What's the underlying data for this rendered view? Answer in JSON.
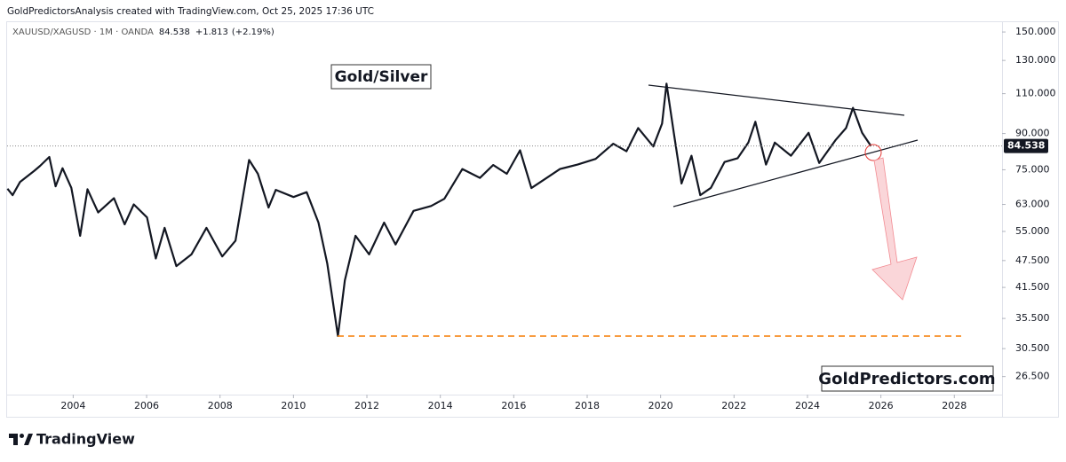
{
  "header": "GoldPredictorsAnalysis created with TradingView.com, Oct 25, 2025 17:36 UTC",
  "legend": {
    "symbol": "XAUUSD/XAGUSD · 1M · OANDA",
    "change": "+1.813",
    "change_pct": "(+2.19%)"
  },
  "footer": "TradingView",
  "chart_data": {
    "type": "line",
    "annotations": [
      "Gold/Silver",
      "GoldPredictors.com"
    ],
    "log_scale": true,
    "last_price": 84.538,
    "xlim": [
      2002.2,
      2029.3
    ],
    "xticks": [
      2004,
      2006,
      2008,
      2010,
      2012,
      2014,
      2016,
      2018,
      2020,
      2022,
      2024,
      2026,
      2028
    ],
    "ylim": [
      24.2,
      157.6
    ],
    "yticks": [
      {
        "value": 26.5,
        "label": "26.500"
      },
      {
        "value": 30.5,
        "label": "30.500"
      },
      {
        "value": 35.5,
        "label": "35.500"
      },
      {
        "value": 41.5,
        "label": "41.500"
      },
      {
        "value": 47.5,
        "label": "47.500"
      },
      {
        "value": 55,
        "label": "55.000"
      },
      {
        "value": 63,
        "label": "63.000"
      },
      {
        "value": 75,
        "label": "75.000"
      },
      {
        "value": 90,
        "label": "90.000"
      },
      {
        "value": 110,
        "label": "110.000"
      },
      {
        "value": 130,
        "label": "130.000"
      },
      {
        "value": 150,
        "label": "150.000"
      }
    ],
    "series": [
      {
        "name": "XAUUSD/XAGUSD",
        "color": "#131722",
        "x": [
          2002.21,
          2002.35,
          2002.55,
          2002.94,
          2003.1,
          2003.35,
          2003.52,
          2003.71,
          2003.95,
          2004.19,
          2004.39,
          2004.68,
          2005.11,
          2005.4,
          2005.65,
          2006.01,
          2006.25,
          2006.49,
          2006.81,
          2007.22,
          2007.63,
          2008.06,
          2008.42,
          2008.79,
          2009.03,
          2009.32,
          2009.52,
          2010.0,
          2010.36,
          2010.68,
          2010.92,
          2011.21,
          2011.4,
          2011.69,
          2012.06,
          2012.47,
          2012.78,
          2013.27,
          2013.75,
          2014.11,
          2014.6,
          2015.08,
          2015.44,
          2015.81,
          2016.17,
          2016.48,
          2016.9,
          2017.26,
          2017.74,
          2018.23,
          2018.71,
          2019.07,
          2019.39,
          2019.8,
          2020.04,
          2020.16,
          2020.36,
          2020.57,
          2020.84,
          2021.08,
          2021.37,
          2021.74,
          2022.1,
          2022.39,
          2022.58,
          2022.87,
          2023.11,
          2023.55,
          2024.03,
          2024.32,
          2024.76,
          2025.05,
          2025.24,
          2025.49,
          2025.73
        ],
        "values": [
          68.2,
          66,
          70.5,
          74.6,
          76.5,
          80,
          69,
          75.6,
          68.5,
          53.8,
          68,
          60.5,
          65,
          57,
          63,
          59,
          48,
          56,
          46.2,
          49,
          56,
          48.5,
          52.5,
          78.8,
          73.5,
          62,
          67.8,
          65.4,
          67,
          57.5,
          46.8,
          32.5,
          43,
          53.8,
          49,
          57.5,
          51.5,
          61,
          62.5,
          64.8,
          75.3,
          72,
          76.8,
          73.5,
          82.7,
          68.4,
          72,
          75.3,
          77,
          79.2,
          85.5,
          82.3,
          92.5,
          84.3,
          94.6,
          115.7,
          90.3,
          70,
          80.5,
          66,
          68.5,
          78,
          79.5,
          86,
          95.5,
          77,
          86,
          80.5,
          90.3,
          77.6,
          87,
          92.5,
          102.4,
          90.3,
          84.5
        ]
      }
    ]
  }
}
